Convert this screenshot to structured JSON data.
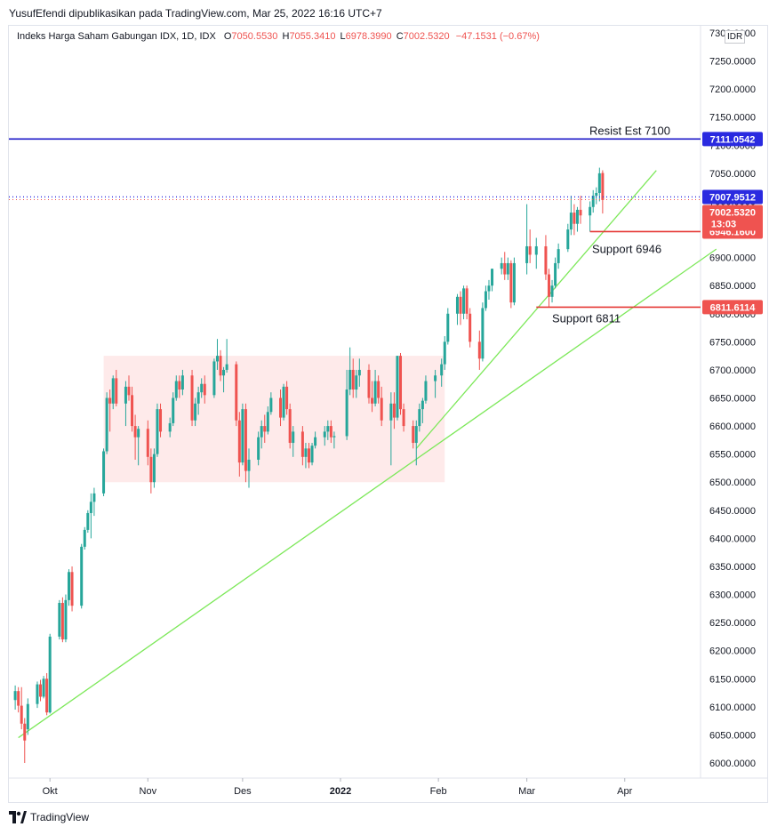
{
  "header": {
    "publisher": "YusufEfendi dipublikasikan pada TradingView.com, Mar 25, 2022 16:16 UTC+7",
    "symbol": "Indeks Harga Saham Gabungan IDX, 1D, IDX",
    "o_label": "O",
    "o_value": "7050.5530",
    "h_label": "H",
    "h_value": "7055.3410",
    "l_label": "L",
    "l_value": "6978.3990",
    "c_label": "C",
    "c_value": "7002.5320",
    "change": "−47.1531 (−0.67%)",
    "currency": "IDR"
  },
  "footer": {
    "brand": "TradingView"
  },
  "colors": {
    "up": "#26a69a",
    "down": "#ef5350",
    "resist_line": "#1e18c8",
    "support_line": "#e53935",
    "trendline": "#7de85a",
    "range_box": "#fde3e3",
    "price_label_blue": "#2a2ae0",
    "price_label_red": "#ef5350"
  },
  "chart_data": {
    "type": "candlestick",
    "ylim": [
      5975,
      7310
    ],
    "y_ticks": [
      "7300.0000",
      "7250.0000",
      "7200.0000",
      "7150.0000",
      "7100.0000",
      "7050.0000",
      "7000.0000",
      "6950.0000",
      "6900.0000",
      "6850.0000",
      "6800.0000",
      "6750.0000",
      "6700.0000",
      "6650.0000",
      "6600.0000",
      "6550.0000",
      "6500.0000",
      "6450.0000",
      "6400.0000",
      "6350.0000",
      "6300.0000",
      "6250.0000",
      "6200.0000",
      "6150.0000",
      "6100.0000",
      "6050.0000",
      "6000.0000"
    ],
    "x_ticks": [
      {
        "label": "Okt",
        "date": "2021-10-01"
      },
      {
        "label": "Nov",
        "date": "2021-11-01"
      },
      {
        "label": "Des",
        "date": "2021-12-01"
      },
      {
        "label": "2022",
        "date": "2022-01-01"
      },
      {
        "label": "Feb",
        "date": "2022-02-01"
      },
      {
        "label": "Mar",
        "date": "2022-03-01"
      },
      {
        "label": "Apr",
        "date": "2022-04-01"
      }
    ],
    "x_range": [
      "2021-09-18",
      "2022-04-25"
    ],
    "horizontal_lines": [
      {
        "name": "Resist Est 7100",
        "price": 7111.0542,
        "label": "7111.0542",
        "color": "#1e18c8"
      },
      {
        "name": "Support 6946",
        "price": 6946.16,
        "label": "6946.1600",
        "color": "#e53935",
        "start": "2022-03-21"
      },
      {
        "name": "Support 6811",
        "price": 6811.6114,
        "label": "6811.6114",
        "color": "#e53935",
        "start": "2022-03-04"
      }
    ],
    "last_price_lines": [
      {
        "price": 7007.9512,
        "label": "7007.9512",
        "color": "#2a2ae0"
      },
      {
        "price": 7002.532,
        "label": "7002.5320",
        "countdown": "13:03",
        "color": "#ef5350"
      }
    ],
    "trendlines": [
      {
        "start": [
          "2021-09-21",
          6045
        ],
        "end": [
          "2022-04-30",
          6915
        ]
      },
      {
        "start": [
          "2022-01-25",
          6560
        ],
        "end": [
          "2022-04-11",
          7055
        ]
      }
    ],
    "range_box": {
      "from": "2021-10-18",
      "to": "2022-02-03",
      "low": 6500,
      "high": 6725
    },
    "candles": [
      [
        "2021-09-20",
        6112,
        6138,
        6095,
        6128
      ],
      [
        "2021-09-21",
        6128,
        6135,
        6090,
        6102
      ],
      [
        "2021-09-22",
        6102,
        6135,
        6060,
        6070
      ],
      [
        "2021-09-23",
        6070,
        6080,
        6000,
        6040
      ],
      [
        "2021-09-24",
        6060,
        6115,
        6050,
        6105
      ],
      [
        "2021-09-27",
        6105,
        6145,
        6098,
        6140
      ],
      [
        "2021-09-28",
        6140,
        6148,
        6110,
        6118
      ],
      [
        "2021-09-29",
        6118,
        6155,
        6115,
        6150
      ],
      [
        "2021-09-30",
        6150,
        6160,
        6085,
        6090
      ],
      [
        "2021-10-01",
        6090,
        6230,
        6088,
        6225
      ],
      [
        "2021-10-04",
        6225,
        6290,
        6220,
        6285
      ],
      [
        "2021-10-05",
        6285,
        6295,
        6215,
        6220
      ],
      [
        "2021-10-06",
        6220,
        6300,
        6215,
        6290
      ],
      [
        "2021-10-07",
        6290,
        6345,
        6280,
        6340
      ],
      [
        "2021-10-08",
        6340,
        6350,
        6270,
        6280
      ],
      [
        "2021-10-11",
        6280,
        6390,
        6275,
        6385
      ],
      [
        "2021-10-12",
        6385,
        6420,
        6380,
        6415
      ],
      [
        "2021-10-13",
        6415,
        6450,
        6410,
        6445
      ],
      [
        "2021-10-14",
        6445,
        6480,
        6400,
        6465
      ],
      [
        "2021-10-15",
        6465,
        6490,
        6440,
        6480
      ],
      [
        "2021-10-18",
        6480,
        6560,
        6475,
        6555
      ],
      [
        "2021-10-19",
        6555,
        6660,
        6550,
        6650
      ],
      [
        "2021-10-20",
        6650,
        6665,
        6590,
        6640
      ],
      [
        "2021-10-21",
        6640,
        6690,
        6630,
        6685
      ],
      [
        "2021-10-22",
        6685,
        6700,
        6635,
        6640
      ],
      [
        "2021-10-25",
        6640,
        6680,
        6600,
        6670
      ],
      [
        "2021-10-26",
        6670,
        6690,
        6645,
        6655
      ],
      [
        "2021-10-27",
        6655,
        6670,
        6590,
        6600
      ],
      [
        "2021-10-28",
        6600,
        6620,
        6540,
        6580
      ],
      [
        "2021-10-29",
        6580,
        6600,
        6530,
        6595
      ],
      [
        "2021-11-01",
        6595,
        6610,
        6530,
        6545
      ],
      [
        "2021-11-02",
        6545,
        6560,
        6480,
        6500
      ],
      [
        "2021-11-03",
        6500,
        6560,
        6490,
        6550
      ],
      [
        "2021-11-04",
        6550,
        6640,
        6545,
        6630
      ],
      [
        "2021-11-05",
        6630,
        6640,
        6580,
        6590
      ],
      [
        "2021-11-08",
        6590,
        6615,
        6580,
        6605
      ],
      [
        "2021-11-09",
        6605,
        6660,
        6600,
        6650
      ],
      [
        "2021-11-10",
        6650,
        6690,
        6645,
        6680
      ],
      [
        "2021-11-11",
        6680,
        6690,
        6650,
        6665
      ],
      [
        "2021-11-12",
        6665,
        6700,
        6655,
        6690
      ],
      [
        "2021-11-15",
        6690,
        6700,
        6600,
        6610
      ],
      [
        "2021-11-16",
        6610,
        6650,
        6600,
        6640
      ],
      [
        "2021-11-17",
        6640,
        6670,
        6620,
        6660
      ],
      [
        "2021-11-18",
        6660,
        6685,
        6650,
        6675
      ],
      [
        "2021-11-19",
        6675,
        6690,
        6640,
        6655
      ],
      [
        "2021-11-22",
        6655,
        6720,
        6650,
        6715
      ],
      [
        "2021-11-23",
        6715,
        6755,
        6700,
        6725
      ],
      [
        "2021-11-24",
        6725,
        6735,
        6680,
        6690
      ],
      [
        "2021-11-25",
        6690,
        6705,
        6660,
        6700
      ],
      [
        "2021-11-26",
        6700,
        6755,
        6695,
        6710
      ],
      [
        "2021-11-29",
        6710,
        6715,
        6600,
        6610
      ],
      [
        "2021-11-30",
        6610,
        6625,
        6510,
        6535
      ],
      [
        "2021-12-01",
        6535,
        6640,
        6530,
        6630
      ],
      [
        "2021-12-02",
        6630,
        6640,
        6500,
        6520
      ],
      [
        "2021-12-03",
        6520,
        6560,
        6490,
        6540
      ],
      [
        "2021-12-06",
        6540,
        6590,
        6530,
        6580
      ],
      [
        "2021-12-07",
        6580,
        6610,
        6560,
        6600
      ],
      [
        "2021-12-08",
        6600,
        6620,
        6570,
        6590
      ],
      [
        "2021-12-09",
        6590,
        6635,
        6585,
        6625
      ],
      [
        "2021-12-10",
        6625,
        6660,
        6620,
        6650
      ],
      [
        "2021-12-13",
        6650,
        6665,
        6600,
        6615
      ],
      [
        "2021-12-14",
        6615,
        6675,
        6610,
        6670
      ],
      [
        "2021-12-15",
        6670,
        6680,
        6620,
        6630
      ],
      [
        "2021-12-16",
        6630,
        6640,
        6560,
        6570
      ],
      [
        "2021-12-17",
        6570,
        6600,
        6545,
        6590
      ],
      [
        "2021-12-20",
        6590,
        6600,
        6530,
        6545
      ],
      [
        "2021-12-21",
        6545,
        6570,
        6525,
        6560
      ],
      [
        "2021-12-22",
        6560,
        6570,
        6525,
        6535
      ],
      [
        "2021-12-23",
        6535,
        6570,
        6530,
        6565
      ],
      [
        "2021-12-24",
        6565,
        6590,
        6560,
        6580
      ],
      [
        "2021-12-27",
        6580,
        6600,
        6565,
        6590
      ],
      [
        "2021-12-28",
        6590,
        6610,
        6575,
        6600
      ],
      [
        "2021-12-29",
        6600,
        6610,
        6570,
        6580
      ],
      [
        "2021-12-30",
        6580,
        6590,
        6560,
        6582
      ],
      [
        "2022-01-03",
        6582,
        6700,
        6575,
        6665
      ],
      [
        "2022-01-04",
        6665,
        6740,
        6655,
        6700
      ],
      [
        "2022-01-05",
        6700,
        6720,
        6650,
        6665
      ],
      [
        "2022-01-06",
        6665,
        6700,
        6650,
        6690
      ],
      [
        "2022-01-07",
        6690,
        6720,
        6670,
        6700
      ],
      [
        "2022-01-10",
        6700,
        6710,
        6640,
        6650
      ],
      [
        "2022-01-11",
        6650,
        6680,
        6625,
        6640
      ],
      [
        "2022-01-12",
        6640,
        6700,
        6635,
        6680
      ],
      [
        "2022-01-13",
        6680,
        6690,
        6640,
        6650
      ],
      [
        "2022-01-14",
        6650,
        6670,
        6600,
        6610
      ],
      [
        "2022-01-17",
        6610,
        6660,
        6530,
        6640
      ],
      [
        "2022-01-18",
        6640,
        6660,
        6595,
        6615
      ],
      [
        "2022-01-19",
        6615,
        6725,
        6610,
        6725
      ],
      [
        "2022-01-20",
        6725,
        6730,
        6620,
        6630
      ],
      [
        "2022-01-21",
        6630,
        6640,
        6590,
        6600
      ],
      [
        "2022-01-24",
        6600,
        6610,
        6560,
        6570
      ],
      [
        "2022-01-25",
        6570,
        6610,
        6530,
        6600
      ],
      [
        "2022-01-26",
        6600,
        6640,
        6590,
        6630
      ],
      [
        "2022-01-27",
        6630,
        6650,
        6605,
        6645
      ],
      [
        "2022-01-28",
        6645,
        6690,
        6640,
        6680
      ],
      [
        "2022-01-31",
        6680,
        6700,
        6650,
        6690
      ],
      [
        "2022-02-02",
        6690,
        6720,
        6670,
        6710
      ],
      [
        "2022-02-03",
        6710,
        6760,
        6700,
        6750
      ],
      [
        "2022-02-04",
        6750,
        6810,
        6745,
        6800
      ],
      [
        "2022-02-07",
        6800,
        6835,
        6780,
        6830
      ],
      [
        "2022-02-08",
        6830,
        6840,
        6780,
        6800
      ],
      [
        "2022-02-09",
        6800,
        6850,
        6790,
        6845
      ],
      [
        "2022-02-10",
        6845,
        6850,
        6790,
        6800
      ],
      [
        "2022-02-11",
        6800,
        6810,
        6740,
        6750
      ],
      [
        "2022-02-14",
        6750,
        6770,
        6700,
        6720
      ],
      [
        "2022-02-15",
        6720,
        6820,
        6715,
        6810
      ],
      [
        "2022-02-16",
        6810,
        6850,
        6805,
        6840
      ],
      [
        "2022-02-17",
        6840,
        6860,
        6825,
        6850
      ],
      [
        "2022-02-18",
        6850,
        6880,
        6840,
        6880
      ],
      [
        "2022-02-21",
        6880,
        6900,
        6870,
        6890
      ],
      [
        "2022-02-22",
        6890,
        6910,
        6860,
        6870
      ],
      [
        "2022-02-23",
        6870,
        6900,
        6860,
        6890
      ],
      [
        "2022-02-24",
        6890,
        6895,
        6810,
        6820
      ],
      [
        "2022-02-25",
        6820,
        6900,
        6815,
        6890
      ],
      [
        "2022-03-01",
        6890,
        6995,
        6870,
        6920
      ],
      [
        "2022-03-02",
        6920,
        6950,
        6890,
        6905
      ],
      [
        "2022-03-04",
        6905,
        6935,
        6880,
        6920
      ],
      [
        "2022-03-07",
        6920,
        6940,
        6860,
        6870
      ],
      [
        "2022-03-08",
        6870,
        6880,
        6811,
        6830
      ],
      [
        "2022-03-09",
        6830,
        6860,
        6820,
        6850
      ],
      [
        "2022-03-10",
        6850,
        6900,
        6845,
        6890
      ],
      [
        "2022-03-11",
        6890,
        6925,
        6880,
        6915
      ],
      [
        "2022-03-14",
        6915,
        6960,
        6910,
        6950
      ],
      [
        "2022-03-15",
        6950,
        7010,
        6940,
        6980
      ],
      [
        "2022-03-16",
        6980,
        6995,
        6940,
        6960
      ],
      [
        "2022-03-17",
        6960,
        6990,
        6946,
        6985
      ],
      [
        "2022-03-18",
        6985,
        7010,
        6960,
        6975
      ],
      [
        "2022-03-21",
        6975,
        7000,
        6946,
        6990
      ],
      [
        "2022-03-22",
        6990,
        7020,
        6980,
        7010
      ],
      [
        "2022-03-23",
        7010,
        7025,
        6995,
        7015
      ],
      [
        "2022-03-24",
        7015,
        7060,
        7000,
        7050
      ],
      [
        "2022-03-25",
        7050.553,
        7055.341,
        6978.399,
        7002.532
      ]
    ]
  }
}
